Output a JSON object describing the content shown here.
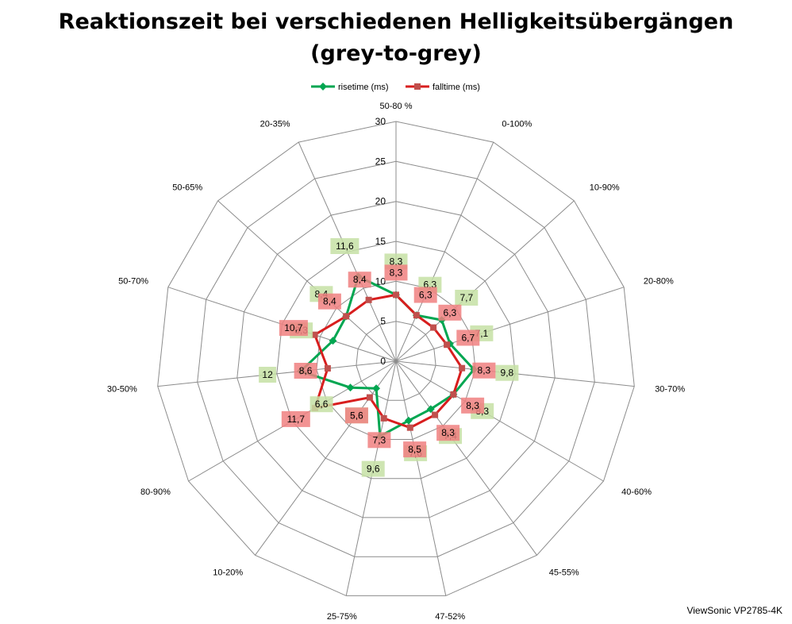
{
  "page": {
    "title_line1": "Reaktionszeit bei verschiedenen Helligkeitsübergängen",
    "title_line2": "(grey-to-grey)",
    "credit": "ViewSonic VP2785-4K"
  },
  "chart_data": {
    "type": "radar",
    "categories": [
      "50-80 %",
      "0-100%",
      "10-90%",
      "20-80%",
      "30-70%",
      "40-60%",
      "45-55%",
      "47-52%",
      "25-75%",
      "10-20%",
      "80-90%",
      "30-50%",
      "50-70%",
      "50-65%",
      "20-35%"
    ],
    "radial_ticks": [
      0,
      5,
      10,
      15,
      20,
      25,
      30
    ],
    "rlim": [
      0,
      30
    ],
    "grid": true,
    "legend_position": "top",
    "series": [
      {
        "name": "risetime (ms)",
        "color": "#00a651",
        "label_bg": "#c5e0a5",
        "values": [
          8.3,
          6.3,
          7.7,
          7.1,
          9.8,
          8.3,
          7.4,
          7.6,
          9.6,
          4.2,
          6.6,
          12,
          8.3,
          8.4,
          11.6
        ],
        "labels": [
          "8,3",
          "6,3",
          "7,7",
          "7,1",
          "9,8",
          "8,3",
          "7,4",
          "7,6",
          "9,6",
          "4,2",
          "6,6",
          "12",
          "8,3",
          "8,4",
          "11,6"
        ]
      },
      {
        "name": "falltime (ms)",
        "color": "#d81e1e",
        "label_bg": "#f08080",
        "values": [
          8.3,
          6.3,
          6.3,
          6.7,
          8.3,
          8.3,
          8.3,
          8.5,
          7.3,
          5.6,
          11.7,
          8.6,
          10.7,
          8.4,
          8.4
        ],
        "labels": [
          "8,3",
          "6,3",
          "6,3",
          "6,7",
          "8,3",
          "8,3",
          "8,3",
          "8,5",
          "7,3",
          "5,6",
          "11,7",
          "8,6",
          "10,7",
          "8,4",
          "8,4"
        ]
      }
    ]
  }
}
